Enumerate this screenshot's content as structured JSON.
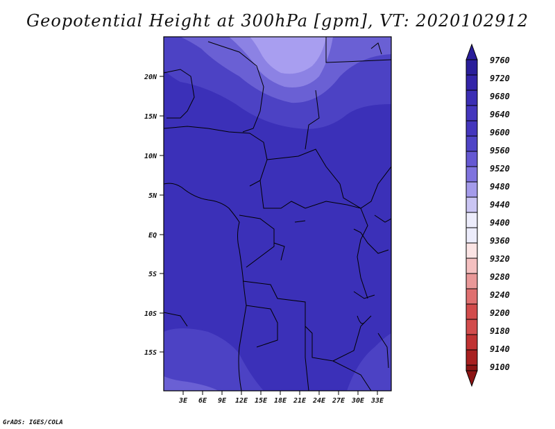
{
  "title": "Geopotential Height at 300hPa [gpm], VT: 2020102912",
  "credit": "GrADS: IGES/COLA",
  "lat_labels": [
    "20N",
    "15N",
    "10N",
    "5N",
    "EQ",
    "5S",
    "10S",
    "15S"
  ],
  "lon_labels": [
    "3E",
    "6E",
    "9E",
    "12E",
    "15E",
    "18E",
    "21E",
    "24E",
    "27E",
    "30E",
    "33E"
  ],
  "colorbar": {
    "levels": [
      "9760",
      "9720",
      "9680",
      "9640",
      "9600",
      "9560",
      "9520",
      "9480",
      "9440",
      "9400",
      "9360",
      "9320",
      "9280",
      "9240",
      "9200",
      "9180",
      "9140",
      "9100"
    ],
    "colors": [
      "#2a1e9a",
      "#3324a8",
      "#3b2eb4",
      "#4436bd",
      "#4f44c6",
      "#6558d2",
      "#7f73de",
      "#a49bea",
      "#cac5f3",
      "#ececfb",
      "#fbe4e4",
      "#f4c0c0",
      "#e99898",
      "#df7070",
      "#d24c4c",
      "#c03232",
      "#a82020",
      "#8c1414"
    ]
  },
  "map_colors": {
    "main": "#3b30b8",
    "light1": "#4c42c4",
    "light2": "#6a60d4",
    "light3": "#8c82e4",
    "light4": "#a89ef0"
  }
}
